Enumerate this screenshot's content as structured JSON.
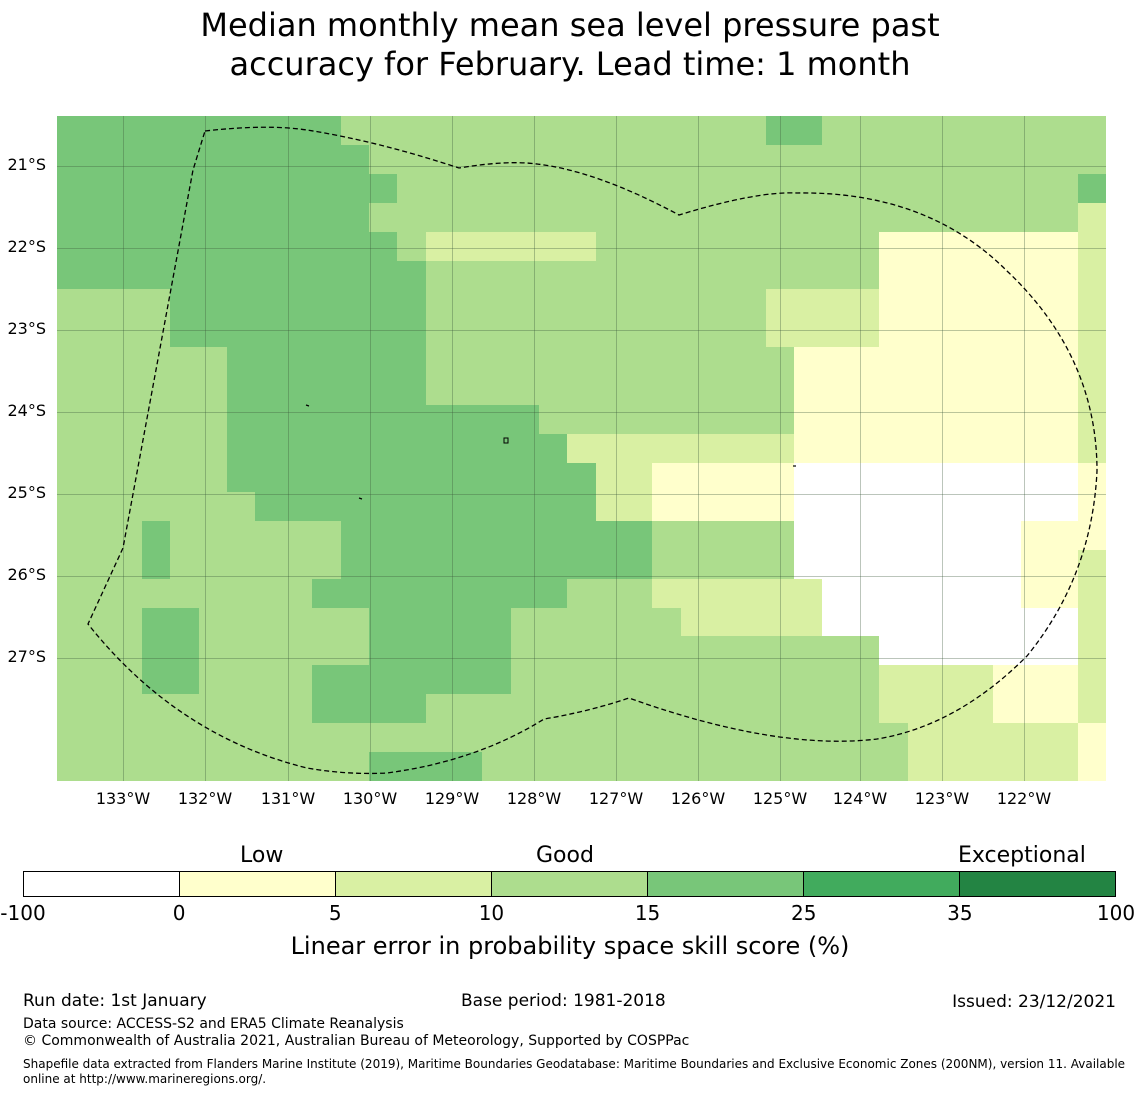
{
  "title": {
    "line1": "Median monthly mean sea level pressure past",
    "line2": "accuracy for February. Lead time: 1 month"
  },
  "map": {
    "lat_labels": [
      "21°S",
      "22°S",
      "23°S",
      "24°S",
      "25°S",
      "26°S",
      "27°S"
    ],
    "lon_labels": [
      "133°W",
      "132°W",
      "131°W",
      "130°W",
      "129°W",
      "128°W",
      "127°W",
      "126°W",
      "125°W",
      "124°W",
      "123°W",
      "122°W"
    ],
    "cell_classes_legend": "0 = -100..0, 1 = 0..5, 2 = 5..10, 3 = 10..15, 4 = 15..25",
    "grid_rows": [
      "4444444444333333333333333443333333333",
      "4444444444433333333333333333333333333",
      "4444444444443333333333333333333333334",
      "4444444444433333333333333333333333332",
      "4444444444443222222333333333311111112",
      "4444444444444333333333333333311111112",
      "3333444444444333333333333222211111112",
      "3333444444444333333333333222211111112",
      "3333334444444333333333333311111111112",
      "3333334444444333333333333311111111112",
      "3333334444444444433333333311111111112",
      "3333334444444444442222222211111111112",
      "3333334444444444444221111100000000001",
      "3333333444444444444221111100000000001",
      "3334333333444444444443333300000000111",
      "3334333333444444444443333300000000112",
      "3333333334444444443332222220000000112",
      "3334433333344444333333222220000000002",
      "3334433333344444333333333333300000002",
      "3334433334444444333333333333322221112",
      "3333333334444333333333333333322221112",
      "3333333333333333333333333333332222221",
      "3333333333344443333333333333332222221"
    ],
    "colors": {
      "class0": "#ffffff",
      "class1": "#ffffcc",
      "class2": "#d9f0a3",
      "class3": "#addd8e",
      "class4": "#78c679",
      "class5": "#41ab5d",
      "class6": "#238443",
      "grid": "#4a7a4a",
      "boundary": "#000000"
    }
  },
  "colorbar": {
    "categories": [
      "Low",
      "Good",
      "Exceptional"
    ],
    "ticks": [
      "-100",
      "0",
      "5",
      "10",
      "15",
      "25",
      "35",
      "100"
    ],
    "segment_colors": [
      "#ffffff",
      "#ffffcc",
      "#d9f0a3",
      "#addd8e",
      "#78c679",
      "#41ab5d",
      "#238443"
    ],
    "label": "Linear error in probability space skill score (%)"
  },
  "footer": {
    "run_date": "Run date: 1st January",
    "base_period": "Base period: 1981-2018",
    "issued": "Issued: 23/12/2021",
    "data_source": "Data source: ACCESS-S2 and ERA5 Climate Reanalysis",
    "copyright": "© Commonwealth of Australia 2021, Australian Bureau of Meteorology, Supported by COSPPac",
    "shapefile": "Shapefile data extracted from Flanders Marine Institute (2019), Maritime Boundaries Geodatabase: Maritime Boundaries and Exclusive Economic Zones (200NM), version 11. Available online at http://www.marineregions.org/."
  }
}
